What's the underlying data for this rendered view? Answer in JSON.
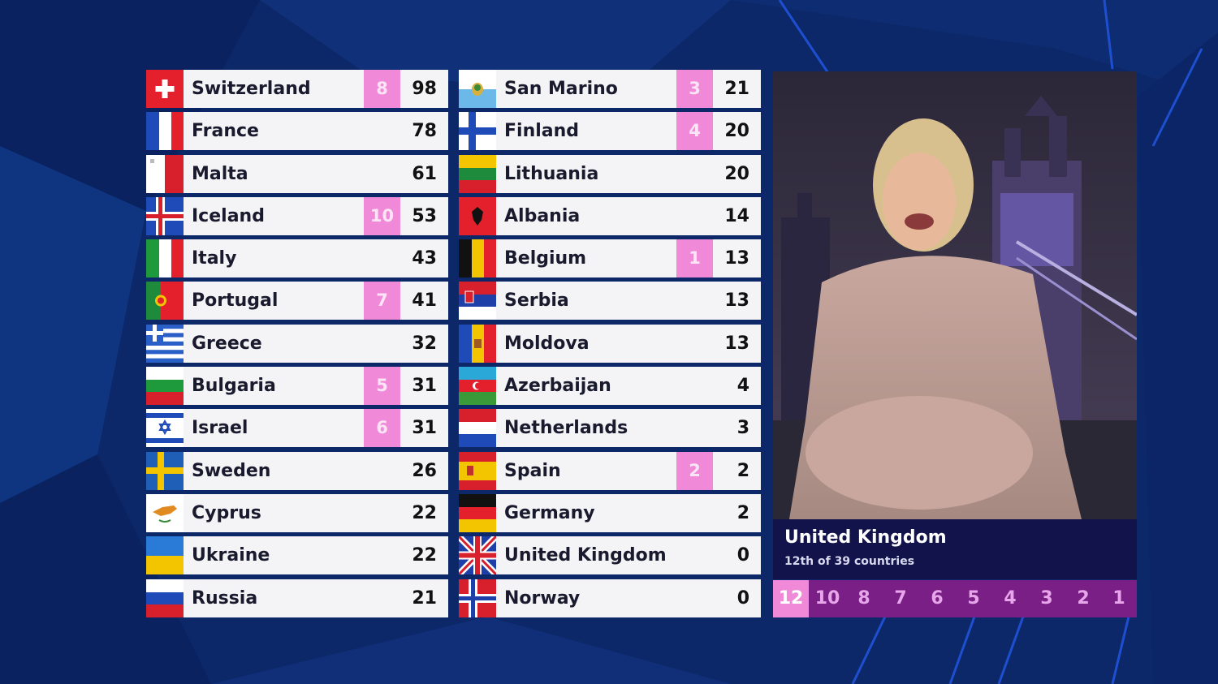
{
  "scoreboard": {
    "left": [
      {
        "country": "Switzerland",
        "award": "8",
        "total": "98",
        "flag": "switzerland-flag-icon"
      },
      {
        "country": "France",
        "award": "",
        "total": "78",
        "flag": "france-flag-icon"
      },
      {
        "country": "Malta",
        "award": "",
        "total": "61",
        "flag": "malta-flag-icon"
      },
      {
        "country": "Iceland",
        "award": "10",
        "total": "53",
        "flag": "iceland-flag-icon"
      },
      {
        "country": "Italy",
        "award": "",
        "total": "43",
        "flag": "italy-flag-icon"
      },
      {
        "country": "Portugal",
        "award": "7",
        "total": "41",
        "flag": "portugal-flag-icon"
      },
      {
        "country": "Greece",
        "award": "",
        "total": "32",
        "flag": "greece-flag-icon"
      },
      {
        "country": "Bulgaria",
        "award": "5",
        "total": "31",
        "flag": "bulgaria-flag-icon"
      },
      {
        "country": "Israel",
        "award": "6",
        "total": "31",
        "flag": "israel-flag-icon"
      },
      {
        "country": "Sweden",
        "award": "",
        "total": "26",
        "flag": "sweden-flag-icon"
      },
      {
        "country": "Cyprus",
        "award": "",
        "total": "22",
        "flag": "cyprus-flag-icon"
      },
      {
        "country": "Ukraine",
        "award": "",
        "total": "22",
        "flag": "ukraine-flag-icon"
      },
      {
        "country": "Russia",
        "award": "",
        "total": "21",
        "flag": "russia-flag-icon"
      }
    ],
    "right": [
      {
        "country": "San Marino",
        "award": "3",
        "total": "21",
        "flag": "san-marino-flag-icon"
      },
      {
        "country": "Finland",
        "award": "4",
        "total": "20",
        "flag": "finland-flag-icon"
      },
      {
        "country": "Lithuania",
        "award": "",
        "total": "20",
        "flag": "lithuania-flag-icon"
      },
      {
        "country": "Albania",
        "award": "",
        "total": "14",
        "flag": "albania-flag-icon"
      },
      {
        "country": "Belgium",
        "award": "1",
        "total": "13",
        "flag": "belgium-flag-icon"
      },
      {
        "country": "Serbia",
        "award": "",
        "total": "13",
        "flag": "serbia-flag-icon"
      },
      {
        "country": "Moldova",
        "award": "",
        "total": "13",
        "flag": "moldova-flag-icon"
      },
      {
        "country": "Azerbaijan",
        "award": "",
        "total": "4",
        "flag": "azerbaijan-flag-icon"
      },
      {
        "country": "Netherlands",
        "award": "",
        "total": "3",
        "flag": "netherlands-flag-icon"
      },
      {
        "country": "Spain",
        "award": "2",
        "total": "2",
        "flag": "spain-flag-icon"
      },
      {
        "country": "Germany",
        "award": "",
        "total": "2",
        "flag": "germany-flag-icon"
      },
      {
        "country": "United Kingdom",
        "award": "",
        "total": "0",
        "flag": "united-kingdom-flag-icon"
      },
      {
        "country": "Norway",
        "award": "",
        "total": "0",
        "flag": "norway-flag-icon"
      }
    ]
  },
  "spokesperson": {
    "country": "United Kingdom",
    "subtitle": "12th of 39 countries"
  },
  "points_bar": {
    "values": [
      "12",
      "10",
      "8",
      "7",
      "6",
      "5",
      "4",
      "3",
      "2",
      "1"
    ],
    "active": "12"
  },
  "colors": {
    "award_pink": "#f08ad8",
    "points_bar_purple": "#7a1f86",
    "caption_navy": "#12134a",
    "background_blue": "#0d2a6b"
  }
}
